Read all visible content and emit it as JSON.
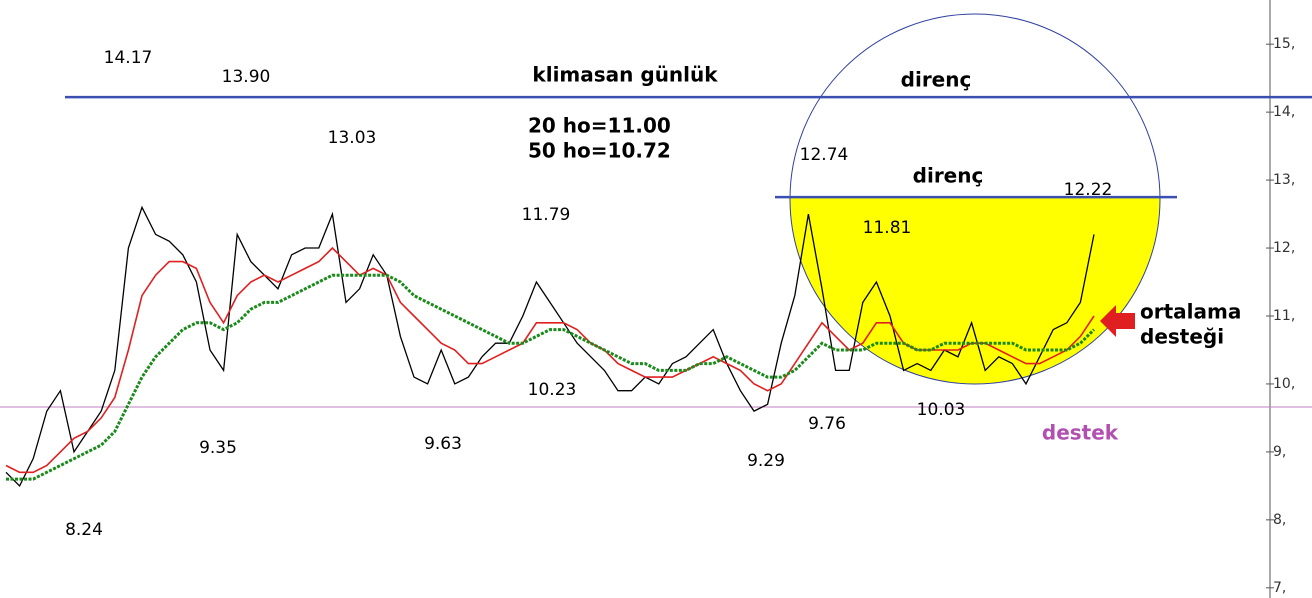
{
  "chart_data": {
    "type": "line",
    "title": "klimasan günlük",
    "subtitle_lines": [
      "20 ho=11.00",
      "50 ho=10.72"
    ],
    "annotations": {
      "resistance_top": "direnç",
      "resistance_mid": "direnç",
      "support": "destek",
      "ma_support": [
        "ortalama",
        "desteği"
      ]
    },
    "price_labels": [
      "14.17",
      "13.90",
      "13.03",
      "11.79",
      "12.74",
      "11.81",
      "12.22",
      "8.24",
      "9.35",
      "9.63",
      "10.23",
      "9.29",
      "9.76",
      "10.03"
    ],
    "ylim": [
      6.85,
      15.65
    ],
    "yticks": [
      {
        "value": 7,
        "label": "7,"
      },
      {
        "value": 8,
        "label": "8,"
      },
      {
        "value": 9,
        "label": "9,"
      },
      {
        "value": 10,
        "label": "10,"
      },
      {
        "value": 11,
        "label": "11,"
      },
      {
        "value": 12,
        "label": "12,"
      },
      {
        "value": 13,
        "label": "13,"
      },
      {
        "value": 14,
        "label": "14,"
      },
      {
        "value": 15,
        "label": "15,"
      }
    ],
    "hlines": [
      {
        "value": 14.22,
        "color": "#3a4fb0"
      },
      {
        "value": 12.75,
        "color": "#3a4fb0"
      },
      {
        "value": 9.66,
        "color": "#c080c0"
      }
    ],
    "series": [
      {
        "color": "#000000",
        "values": [
          8.7,
          8.5,
          8.9,
          9.6,
          9.9,
          9.0,
          9.3,
          9.6,
          10.2,
          12.0,
          12.6,
          12.2,
          12.1,
          11.9,
          11.5,
          10.5,
          10.2,
          12.2,
          11.8,
          11.6,
          11.4,
          11.9,
          12.0,
          12.0,
          12.5,
          11.2,
          11.4,
          11.9,
          11.6,
          10.7,
          10.1,
          10.0,
          10.5,
          10.0,
          10.1,
          10.4,
          10.6,
          10.6,
          11.0,
          11.5,
          11.2,
          10.9,
          10.6,
          10.4,
          10.2,
          9.9,
          9.9,
          10.1,
          10.0,
          10.3,
          10.4,
          10.6,
          10.8,
          10.3,
          9.9,
          9.6,
          9.7,
          10.6,
          11.3,
          12.5,
          11.4,
          10.2,
          10.2,
          11.2,
          11.5,
          11.0,
          10.2,
          10.3,
          10.2,
          10.5,
          10.4,
          10.9,
          10.2,
          10.4,
          10.3,
          10.0,
          10.4,
          10.8,
          10.9,
          11.2,
          12.2
        ]
      },
      {
        "color": "#e02020",
        "values": [
          8.8,
          8.7,
          8.7,
          8.8,
          9.0,
          9.2,
          9.3,
          9.5,
          9.8,
          10.5,
          11.3,
          11.6,
          11.8,
          11.8,
          11.7,
          11.2,
          10.9,
          11.3,
          11.5,
          11.6,
          11.5,
          11.6,
          11.7,
          11.8,
          12.0,
          11.8,
          11.6,
          11.7,
          11.6,
          11.2,
          11.0,
          10.8,
          10.6,
          10.5,
          10.3,
          10.3,
          10.4,
          10.5,
          10.6,
          10.9,
          10.9,
          10.9,
          10.8,
          10.6,
          10.5,
          10.3,
          10.2,
          10.1,
          10.1,
          10.1,
          10.2,
          10.3,
          10.4,
          10.3,
          10.2,
          10.0,
          9.9,
          10.0,
          10.3,
          10.6,
          10.9,
          10.7,
          10.5,
          10.6,
          10.9,
          10.9,
          10.6,
          10.5,
          10.5,
          10.5,
          10.5,
          10.6,
          10.6,
          10.5,
          10.4,
          10.3,
          10.3,
          10.4,
          10.5,
          10.7,
          11.0
        ]
      },
      {
        "color": "#1a8a1a",
        "values": [
          8.6,
          8.6,
          8.6,
          8.7,
          8.8,
          8.9,
          9.0,
          9.1,
          9.3,
          9.7,
          10.1,
          10.4,
          10.6,
          10.8,
          10.9,
          10.9,
          10.8,
          10.9,
          11.1,
          11.2,
          11.2,
          11.3,
          11.4,
          11.5,
          11.6,
          11.6,
          11.6,
          11.6,
          11.6,
          11.5,
          11.3,
          11.2,
          11.1,
          11.0,
          10.9,
          10.8,
          10.7,
          10.6,
          10.6,
          10.7,
          10.8,
          10.8,
          10.7,
          10.6,
          10.5,
          10.4,
          10.3,
          10.3,
          10.2,
          10.2,
          10.2,
          10.3,
          10.3,
          10.4,
          10.3,
          10.2,
          10.1,
          10.1,
          10.2,
          10.4,
          10.6,
          10.5,
          10.5,
          10.5,
          10.6,
          10.6,
          10.6,
          10.5,
          10.5,
          10.6,
          10.6,
          10.6,
          10.6,
          10.6,
          10.6,
          10.5,
          10.5,
          10.5,
          10.5,
          10.6,
          10.8
        ]
      }
    ]
  }
}
